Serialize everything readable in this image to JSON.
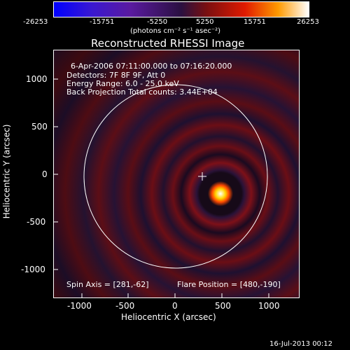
{
  "colorbar": {
    "ticks": [
      "-26253",
      "-15751",
      "-5250",
      "5250",
      "15751",
      "26253"
    ],
    "units": "(photons cm⁻² s⁻¹ asec⁻²)"
  },
  "image": {
    "title": "Reconstructed RHESSI Image",
    "info": [
      "6-Apr-2006 07:11:00.000 to 07:16:20.000",
      "Detectors: 7F 8F 9F, Att 0",
      "Energy Range: 6.0 - 25.0 keV",
      "Back Projection     Total counts: 3.44E+04"
    ],
    "spin_axis": "Spin Axis = [281,-62]",
    "flare_position": "Flare Position = [480,-190]"
  },
  "axes": {
    "xlabel": "Heliocentric X (arcsec)",
    "ylabel": "Heliocentric Y (arcsec)",
    "xticks": [
      "-1000",
      "-500",
      "0",
      "500",
      "1000"
    ],
    "yticks": [
      "1000",
      "500",
      "0",
      "-500",
      "-1000"
    ],
    "xlim": [
      -1280,
      1280
    ],
    "ylim": [
      -1280,
      1280
    ]
  },
  "footer": {
    "timestamp": "16-Jul-2013 00:12"
  },
  "colors": {
    "background": "#000000",
    "colorbar": [
      "#0000ff",
      "#5e1bb0",
      "#2a1a55",
      "#7a0f10",
      "#ff2a00",
      "#ffcf00",
      "#ffffff"
    ]
  }
}
